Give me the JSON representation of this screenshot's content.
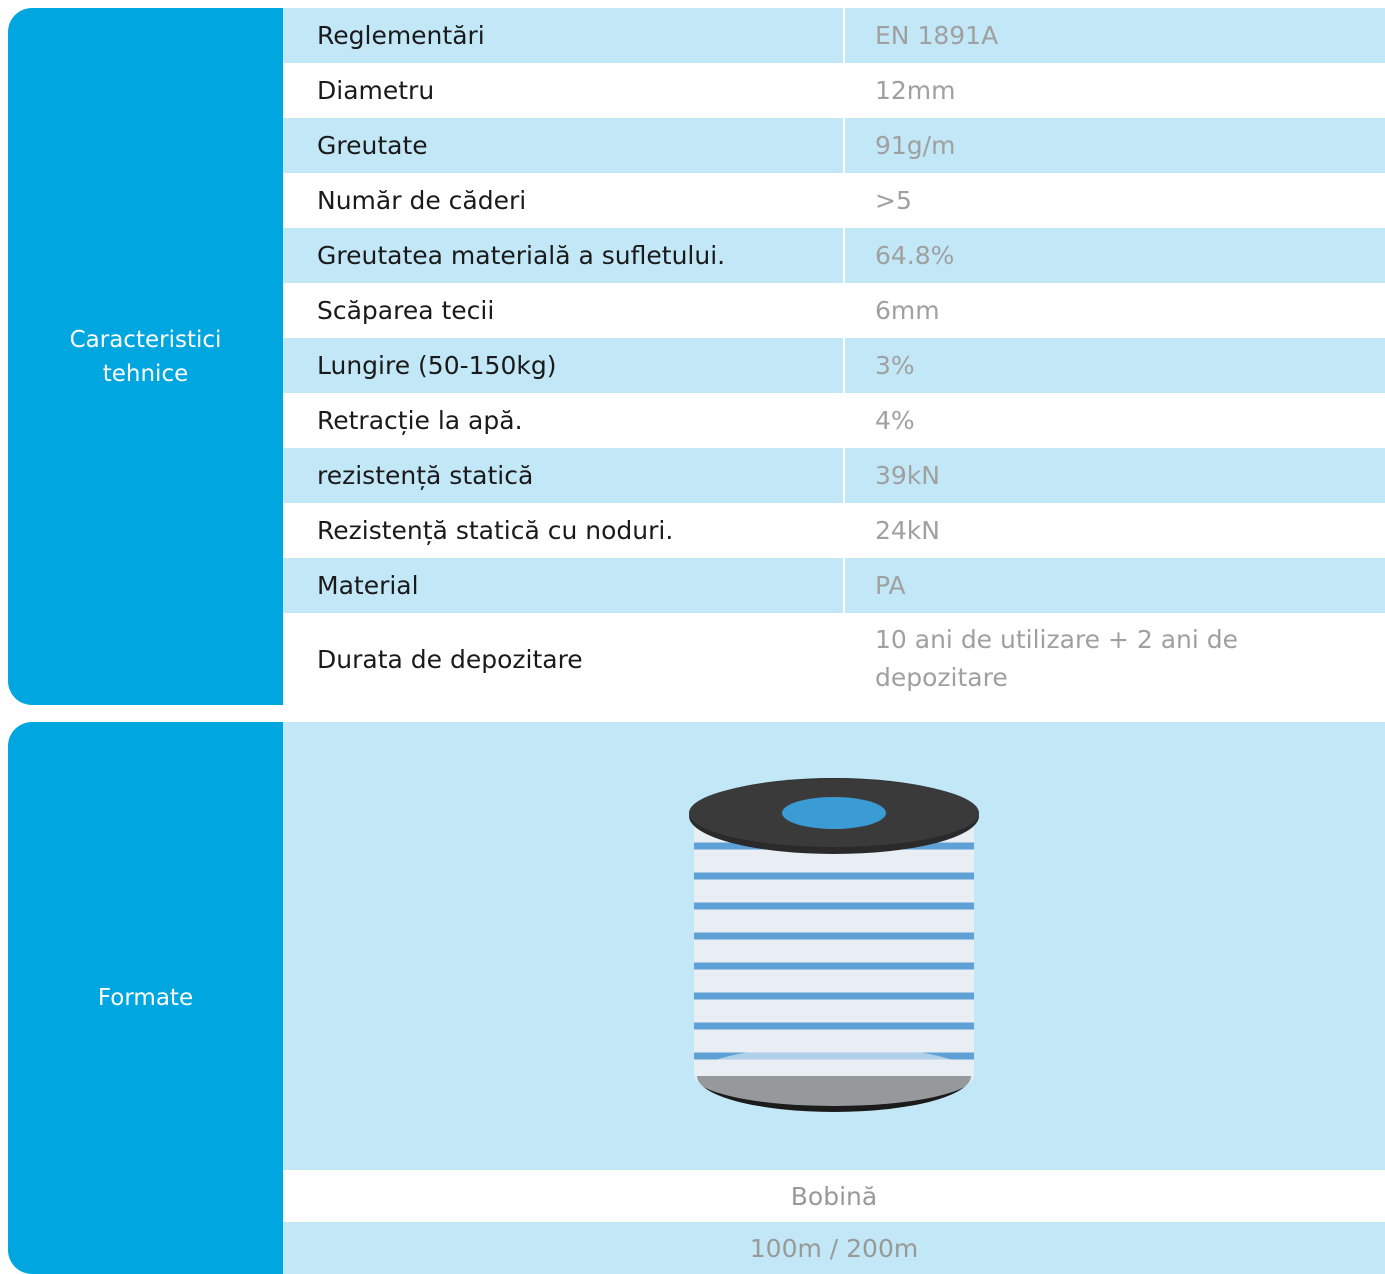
{
  "specs": {
    "heading": "Caracteristici tehnice",
    "rows": [
      [
        "Reglementări",
        "EN 1891A"
      ],
      [
        "Diametru",
        "12mm"
      ],
      [
        "Greutate",
        "91g/m"
      ],
      [
        "Număr de căderi",
        ">5"
      ],
      [
        "Greutatea materială a sufletului.",
        "64.8%"
      ],
      [
        "Scăparea tecii",
        "6mm"
      ],
      [
        "Lungire (50-150kg)",
        "3%"
      ],
      [
        "Retracție la apă.",
        "4%"
      ],
      [
        "rezistență statică",
        "39kN"
      ],
      [
        "Rezistență statică cu noduri.",
        "24kN"
      ],
      [
        "Material",
        "PA"
      ],
      [
        "Durata de depozitare",
        "10 ani de utilizare + 2 ani de depozitare"
      ]
    ]
  },
  "formats": {
    "heading": "Formate",
    "rows": [
      "Bobină",
      "100m / 200m"
    ]
  }
}
